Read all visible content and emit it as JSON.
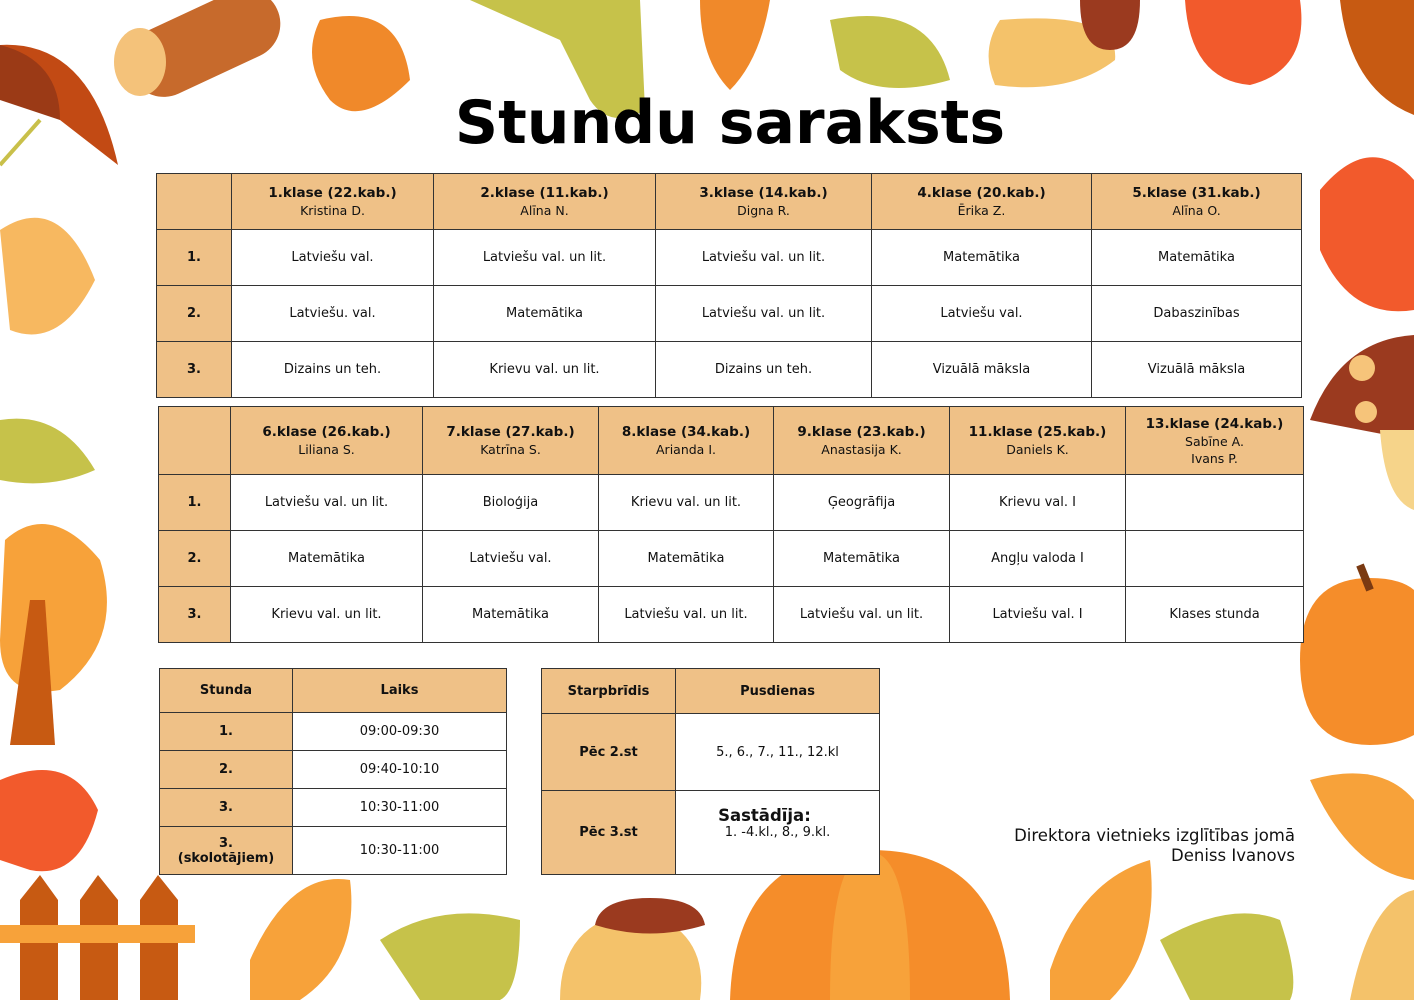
{
  "title": "Stundu saraksts",
  "table1": {
    "headers": [
      {
        "class": "1.klase (22.kab.)",
        "teacher": "Kristina D."
      },
      {
        "class": "2.klase (11.kab.)",
        "teacher": "Alīna N."
      },
      {
        "class": "3.klase (14.kab.)",
        "teacher": "Digna R."
      },
      {
        "class": "4.klase (20.kab.)",
        "teacher": "Ērika Z."
      },
      {
        "class": "5.klase (31.kab.)",
        "teacher": "Alīna O."
      }
    ],
    "rows": [
      {
        "num": "1.",
        "cells": [
          "Latviešu val.",
          "Latviešu val. un lit.",
          "Latviešu val. un lit.",
          "Matemātika",
          "Matemātika"
        ]
      },
      {
        "num": "2.",
        "cells": [
          "Latviešu. val.",
          "Matemātika",
          "Latviešu val. un lit.",
          "Latviešu val.",
          "Dabaszinības"
        ]
      },
      {
        "num": "3.",
        "cells": [
          "Dizains un teh.",
          "Krievu val. un lit.",
          "Dizains un teh.",
          "Vizuālā māksla",
          "Vizuālā māksla"
        ]
      }
    ]
  },
  "table2": {
    "headers": [
      {
        "class": "6.klase (26.kab.)",
        "teacher": "Liliana S."
      },
      {
        "class": "7.klase (27.kab.)",
        "teacher": "Katrīna S."
      },
      {
        "class": "8.klase (34.kab.)",
        "teacher": "Arianda I."
      },
      {
        "class": "9.klase (23.kab.)",
        "teacher": "Anastasija K."
      },
      {
        "class": "11.klase (25.kab.)",
        "teacher": "Daniels K."
      },
      {
        "class": "13.klase (24.kab.)",
        "teacher": "Sabīne A.",
        "teacher2": "Ivans P."
      }
    ],
    "rows": [
      {
        "num": "1.",
        "cells": [
          "Latviešu val. un lit.",
          "Bioloģija",
          "Krievu val. un lit.",
          "Ģeogrāfija",
          "Krievu val. I",
          ""
        ]
      },
      {
        "num": "2.",
        "cells": [
          "Matemātika",
          "Latviešu val.",
          "Matemātika",
          "Matemātika",
          "Angļu valoda I",
          ""
        ]
      },
      {
        "num": "3.",
        "cells": [
          "Krievu val. un lit.",
          "Matemātika",
          "Latviešu val. un lit.",
          "Latviešu val. un lit.",
          "Latviešu val. I",
          "Klases stunda"
        ]
      }
    ]
  },
  "times": {
    "headers": [
      "Stunda",
      "Laiks"
    ],
    "rows": [
      {
        "lesson": "1.",
        "time": "09:00-09:30"
      },
      {
        "lesson": "2.",
        "time": "09:40-10:10"
      },
      {
        "lesson": "3.",
        "time": "10:30-11:00"
      },
      {
        "lesson": "3.",
        "lesson_note": "(skolotājiem)",
        "time": "10:30-11:00"
      }
    ]
  },
  "lunch": {
    "headers": [
      "Starpbrīdis",
      "Pusdienas"
    ],
    "rows": [
      {
        "break": "Pēc 2.st",
        "classes": "5., 6., 7., 11., 12.kl"
      },
      {
        "break": "Pēc 3.st",
        "classes": "1. -4.kl., 8., 9.kl."
      }
    ]
  },
  "signature": {
    "label": "Sastādīja:",
    "role": "Direktora vietnieks izglītības jomā",
    "name": "Deniss Ivanovs"
  },
  "colors": {
    "header_bg": "#efc187",
    "border": "#333333",
    "accent_orange": "#f0892a"
  }
}
